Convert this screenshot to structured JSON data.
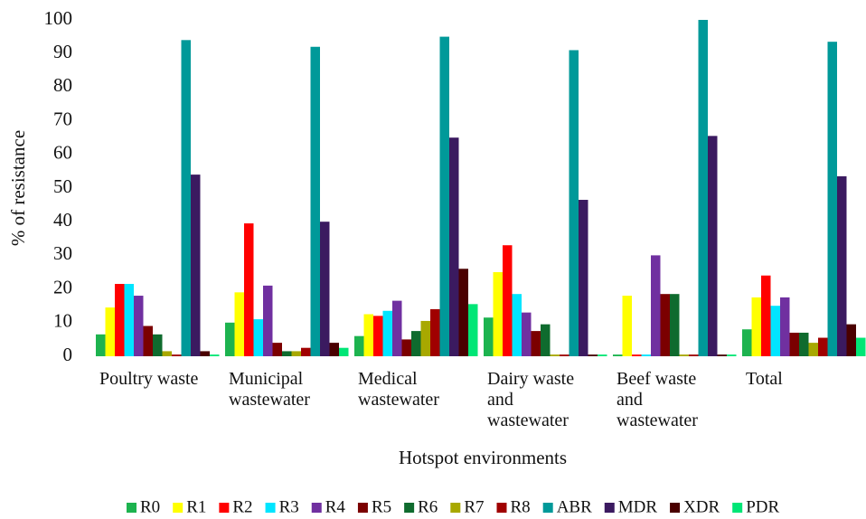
{
  "chart_data": {
    "type": "bar",
    "ylabel": "% of resistance",
    "xlabel": "Hotspot environments",
    "categories": [
      "Poultry waste",
      "Municipal wastewater",
      "Medical wastewater",
      "Dairy waste and wastewater",
      "Beef waste and wastewater",
      "Total"
    ],
    "ylim": [
      0,
      100
    ],
    "yticks": [
      0,
      10,
      20,
      30,
      40,
      50,
      60,
      70,
      80,
      90,
      100
    ],
    "grid": false,
    "legend": "bottom",
    "series": [
      {
        "name": "R0",
        "color": "#1db34f",
        "values": [
          6.5,
          10,
          6,
          11.5,
          0.5,
          8
        ]
      },
      {
        "name": "R1",
        "color": "#ffff00",
        "values": [
          14.5,
          19,
          12.5,
          25,
          18,
          17.5
        ]
      },
      {
        "name": "R2",
        "color": "#ff0000",
        "values": [
          21.5,
          39.5,
          12,
          33,
          0.5,
          24
        ]
      },
      {
        "name": "R3",
        "color": "#00e5ff",
        "values": [
          21.5,
          11,
          13.5,
          18.5,
          0.5,
          15
        ]
      },
      {
        "name": "R4",
        "color": "#7030a0",
        "values": [
          18,
          21,
          16.5,
          13,
          30,
          17.5
        ]
      },
      {
        "name": "R5",
        "color": "#7b0000",
        "values": [
          9,
          4,
          5,
          7.5,
          18.5,
          7
        ]
      },
      {
        "name": "R6",
        "color": "#0f6b2e",
        "values": [
          6.5,
          1.5,
          7.5,
          9.5,
          18.5,
          7
        ]
      },
      {
        "name": "R7",
        "color": "#a8a800",
        "values": [
          1.5,
          1.5,
          10.5,
          0.5,
          0.5,
          4
        ]
      },
      {
        "name": "R8",
        "color": "#a00000",
        "values": [
          0.5,
          2.5,
          14,
          0.5,
          0.5,
          5.5
        ]
      },
      {
        "name": "ABR",
        "color": "#009999",
        "values": [
          94,
          92,
          95,
          91,
          100,
          93.5
        ]
      },
      {
        "name": "MDR",
        "color": "#3b1a60",
        "values": [
          54,
          40,
          65,
          46.5,
          65.5,
          53.5
        ]
      },
      {
        "name": "XDR",
        "color": "#4a0000",
        "values": [
          1.5,
          4,
          26,
          0.5,
          0.5,
          9.5
        ]
      },
      {
        "name": "PDR",
        "color": "#00e676",
        "values": [
          0.5,
          2.5,
          15.5,
          0.5,
          0.5,
          5.5
        ]
      }
    ]
  }
}
